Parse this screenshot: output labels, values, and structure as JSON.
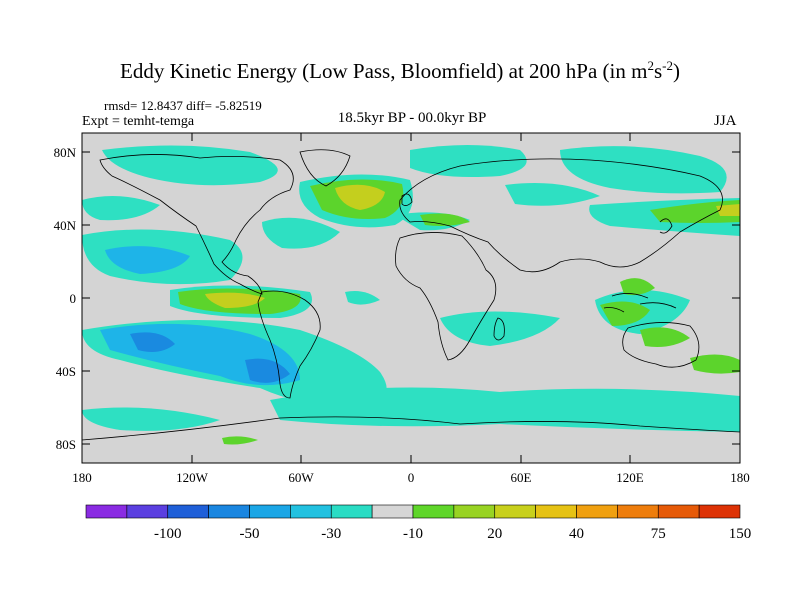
{
  "title": {
    "prefix": "Eddy Kinetic Energy (Low Pass, Bloomfield) at 200 hPa (in m",
    "sup1": "2",
    "mid": "s",
    "sup2": "-2",
    "suffix": ")"
  },
  "stats": "rmsd= 12.8437 diff= -5.82519",
  "expt": "Expt = temht-temga",
  "center_label": "18.5kyr BP - 00.0kyr BP",
  "season": "JJA",
  "lat_ticks": [
    "80N",
    "40N",
    "0",
    "40S",
    "80S"
  ],
  "lon_ticks": [
    "180",
    "120W",
    "60W",
    "0",
    "60E",
    "120E",
    "180"
  ],
  "colorbar": {
    "colors": [
      "#8a2be2",
      "#5b3fe0",
      "#1f5fd8",
      "#1a86e0",
      "#1ba6e6",
      "#22c1e0",
      "#2adcc4",
      "#d6d6d6",
      "#5fd62a",
      "#98d323",
      "#c8d01c",
      "#e6c214",
      "#f0a010",
      "#ee7d0c",
      "#e65a08",
      "#dd3205"
    ],
    "labels": [
      "-100",
      "-50",
      "-30",
      "-10",
      "20",
      "40",
      "75",
      "150"
    ]
  },
  "map_colors": {
    "neutral": "#d4d4d4",
    "teal": "#2ee0c2",
    "light_blue": "#1eb4e8",
    "blue": "#1a8ae0",
    "green": "#5cd42c",
    "yellow_green": "#c4cf1e",
    "coast": "#000000"
  }
}
